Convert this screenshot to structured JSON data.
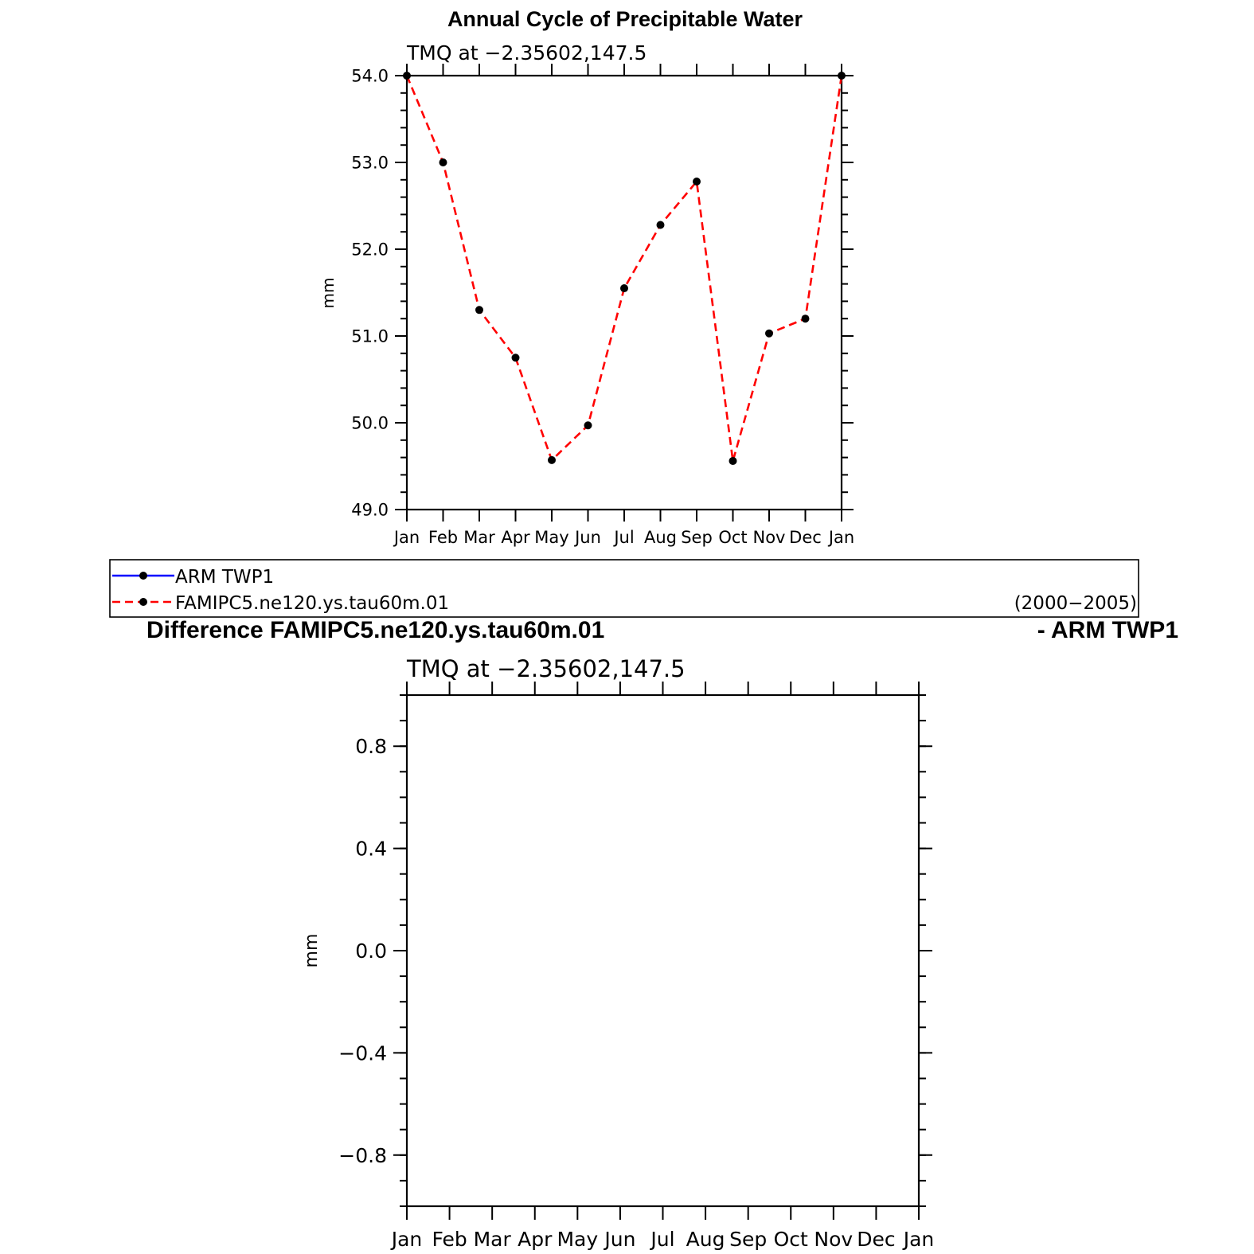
{
  "figure": {
    "title": "Annual Cycle of Precipitable Water",
    "diff_title_left": "Difference FAMIPC5.ne120.ys.tau60m.01",
    "diff_title_right": "- ARM TWP1",
    "legend": {
      "entries": [
        {
          "label": "ARM  TWP1",
          "color": "#0000ff",
          "dash": "solid"
        },
        {
          "label": "FAMIPC5.ne120.ys.tau60m.01",
          "color": "#ff0000",
          "dash": "dashed"
        }
      ],
      "period": "(2000−2005)"
    }
  },
  "chart_data": [
    {
      "type": "line",
      "subtitle": "TMQ  at  −2.35602,147.5",
      "ylabel": "mm",
      "xlabel": "",
      "categories": [
        "Jan",
        "Feb",
        "Mar",
        "Apr",
        "May",
        "Jun",
        "Jul",
        "Aug",
        "Sep",
        "Oct",
        "Nov",
        "Dec",
        "Jan"
      ],
      "ylim": [
        49.0,
        54.0
      ],
      "yticks": [
        "49.0",
        "50.0",
        "51.0",
        "52.0",
        "53.0",
        "54.0"
      ],
      "grid": false,
      "series": [
        {
          "name": "FAMIPC5.ne120.ys.tau60m.01",
          "color": "#ff0000",
          "dash": "dashed",
          "marker": "dot",
          "values": [
            54.0,
            53.0,
            51.3,
            50.75,
            49.57,
            49.97,
            51.55,
            52.28,
            52.78,
            49.56,
            51.03,
            51.2,
            54.0
          ]
        }
      ]
    },
    {
      "type": "line",
      "subtitle": "TMQ  at  −2.35602,147.5",
      "ylabel": "mm",
      "xlabel": "",
      "categories": [
        "Jan",
        "Feb",
        "Mar",
        "Apr",
        "May",
        "Jun",
        "Jul",
        "Aug",
        "Sep",
        "Oct",
        "Nov",
        "Dec",
        "Jan"
      ],
      "ylim": [
        -1.0,
        1.0
      ],
      "yticks": [
        "−0.8",
        "−0.4",
        "0.0",
        "0.4",
        "0.8"
      ],
      "ytick_values": [
        -0.8,
        -0.4,
        0.0,
        0.4,
        0.8
      ],
      "grid": false,
      "series": []
    }
  ]
}
